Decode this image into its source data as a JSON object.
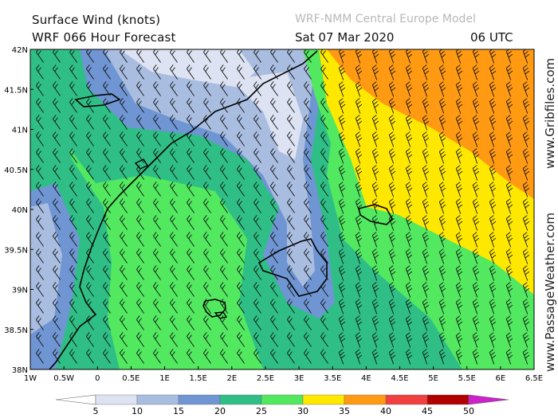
{
  "header": {
    "title_line1": "Surface Wind (knots)",
    "title_line2": "WRF 066 Hour Forecast",
    "model": "WRF-NMM Central Europe Model",
    "valid_date": "Sat 07 Mar 2020",
    "valid_time": "06 UTC"
  },
  "side_labels": {
    "top": "www.Gribfiles.com",
    "bottom": "www.PassageWeather.com"
  },
  "axes": {
    "lat_labels": [
      "42N",
      "41.5N",
      "41N",
      "40.5N",
      "40N",
      "39.5N",
      "39N",
      "38.5N",
      "38N"
    ],
    "lon_labels": [
      "1W",
      "0.5W",
      "0",
      "0.5E",
      "1E",
      "1.5E",
      "2E",
      "2.5E",
      "3E",
      "3.5E",
      "4E",
      "4.5E",
      "5E",
      "5.5E",
      "6E",
      "6.5E"
    ]
  },
  "legend": {
    "ticks": [
      "5",
      "10",
      "15",
      "20",
      "25",
      "30",
      "35",
      "40",
      "45",
      "50"
    ],
    "colors": [
      "#ffffff",
      "#dde3f2",
      "#a9bde0",
      "#6f95d3",
      "#2fbf86",
      "#52e860",
      "#ffe800",
      "#ff9a12",
      "#f04040",
      "#b00000",
      "#cc22cc"
    ]
  },
  "map_features": {
    "regions": [
      "Mallorca",
      "Menorca",
      "Ibiza",
      "Spanish coast"
    ]
  }
}
